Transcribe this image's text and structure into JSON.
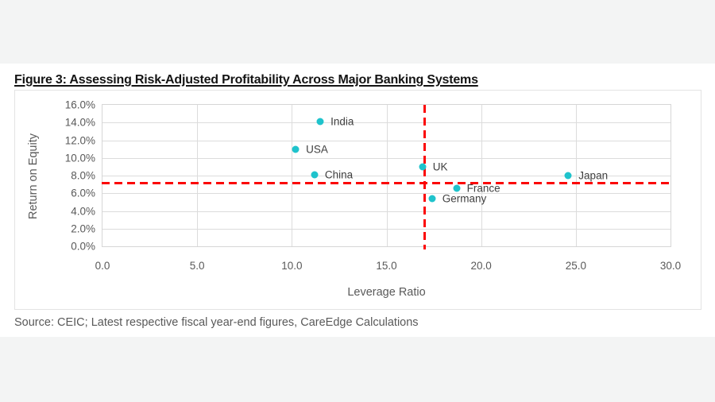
{
  "figure": {
    "title": "Figure 3: Assessing Risk-Adjusted Profitability Across Major Banking Systems",
    "source": "Source: CEIC; Latest respective fiscal year-end figures, CareEdge Calculations"
  },
  "chart_data": {
    "type": "scatter",
    "title": "Figure 3: Assessing Risk-Adjusted Profitability Across Major Banking Systems",
    "xlabel": "Leverage Ratio",
    "ylabel": "Return on Equity",
    "xlim": [
      0,
      30
    ],
    "ylim": [
      0,
      16
    ],
    "y_unit": "%",
    "grid": true,
    "legend": "none",
    "x_ticks": [
      0,
      5,
      10,
      15,
      20,
      25,
      30
    ],
    "x_tick_labels": [
      "0.0",
      "5.0",
      "10.0",
      "15.0",
      "20.0",
      "25.0",
      "30.0"
    ],
    "y_ticks": [
      0,
      2,
      4,
      6,
      8,
      10,
      12,
      14,
      16
    ],
    "y_tick_labels": [
      "0.0%",
      "2.0%",
      "4.0%",
      "6.0%",
      "8.0%",
      "10.0%",
      "12.0%",
      "14.0%",
      "16.0%"
    ],
    "points": [
      {
        "label": "India",
        "x": 11.5,
        "y": 14.1
      },
      {
        "label": "USA",
        "x": 10.2,
        "y": 11.0
      },
      {
        "label": "China",
        "x": 11.2,
        "y": 8.1
      },
      {
        "label": "UK",
        "x": 16.9,
        "y": 9.0
      },
      {
        "label": "Japan",
        "x": 24.6,
        "y": 8.0
      },
      {
        "label": "France",
        "x": 18.7,
        "y": 6.6
      },
      {
        "label": "Germany",
        "x": 17.4,
        "y": 5.4
      }
    ],
    "reference_lines": {
      "vertical_x": 17.0,
      "horizontal_y": 7.2,
      "color": "#fb0505",
      "style": "dashed"
    },
    "marker_color": "#1fc3cc",
    "grid_color": "#dcdcdc",
    "label_color": "#404040",
    "axis_text_color": "#595959"
  }
}
